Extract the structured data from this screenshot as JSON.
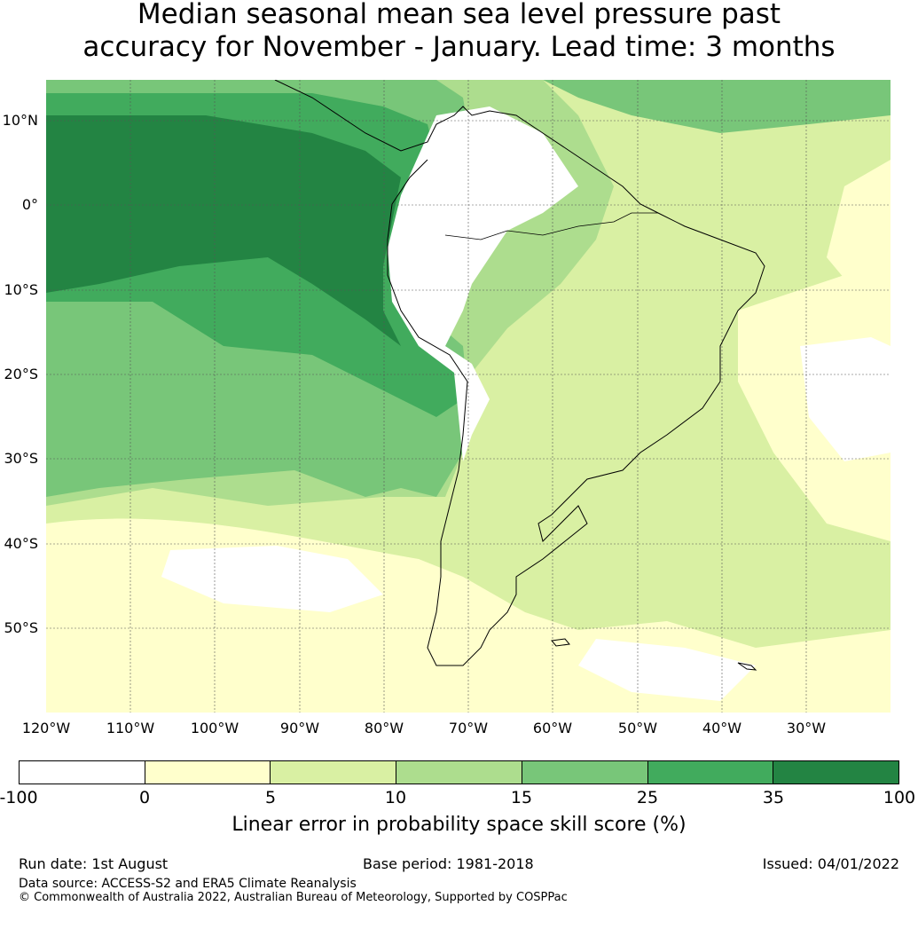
{
  "title_line1": "Median seasonal mean sea level pressure past",
  "title_line2": "accuracy for November - January. Lead time: 3 months",
  "lat_labels": [
    "10°N",
    "0°",
    "10°S",
    "20°S",
    "30°S",
    "40°S",
    "50°S"
  ],
  "lon_labels": [
    "120°W",
    "110°W",
    "100°W",
    "90°W",
    "80°W",
    "70°W",
    "60°W",
    "50°W",
    "40°W",
    "30°W"
  ],
  "colorbar": {
    "label": "Linear error in probability space skill score (%)",
    "ticks": [
      "-100",
      "0",
      "5",
      "10",
      "15",
      "25",
      "35",
      "100"
    ],
    "colors": [
      "#ffffff",
      "#ffffcc",
      "#d9f0a3",
      "#addd8e",
      "#78c679",
      "#41ab5d",
      "#238443"
    ]
  },
  "footer": {
    "run_date": "Run date: 1st August",
    "base_period": "Base period: 1981-2018",
    "issued": "Issued: 04/01/2022",
    "data_source": "Data source: ACCESS-S2 and ERA5 Climate Reanalysis",
    "copyright": "© Commonwealth of Australia 2022, Australian Bureau of Meteorology, Supported by COSPPac"
  }
}
